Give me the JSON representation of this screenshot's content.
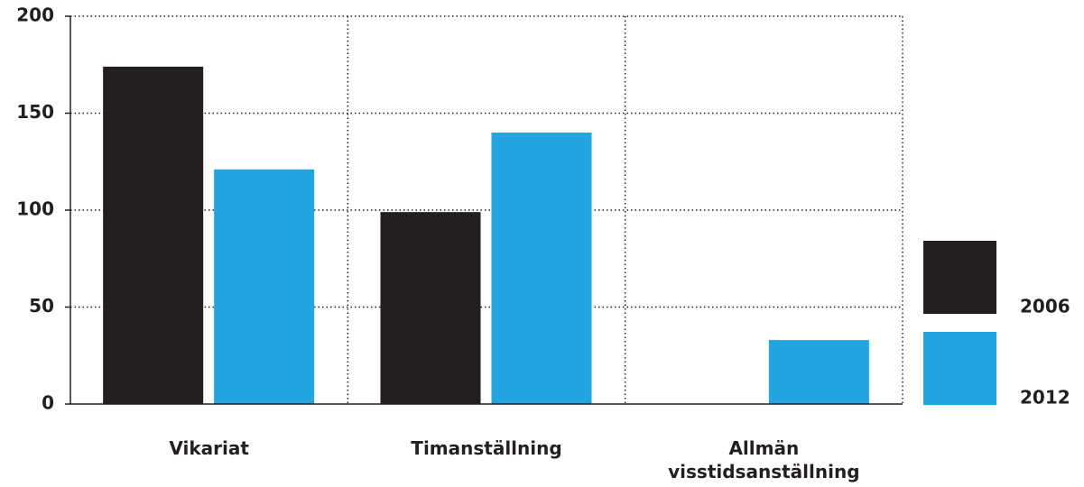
{
  "chart_data": {
    "type": "bar",
    "categories": [
      "Vikariat",
      "Timanställning",
      "Allmän visstidsanställning"
    ],
    "series": [
      {
        "name": "2006",
        "color": "#231f20",
        "values": [
          174,
          99,
          0
        ]
      },
      {
        "name": "2012",
        "color": "#23a6df",
        "values": [
          121,
          140,
          33
        ]
      }
    ],
    "ylim": [
      0,
      200
    ],
    "yticks": [
      0,
      50,
      100,
      150,
      200
    ],
    "grid": true,
    "legend": "right"
  }
}
